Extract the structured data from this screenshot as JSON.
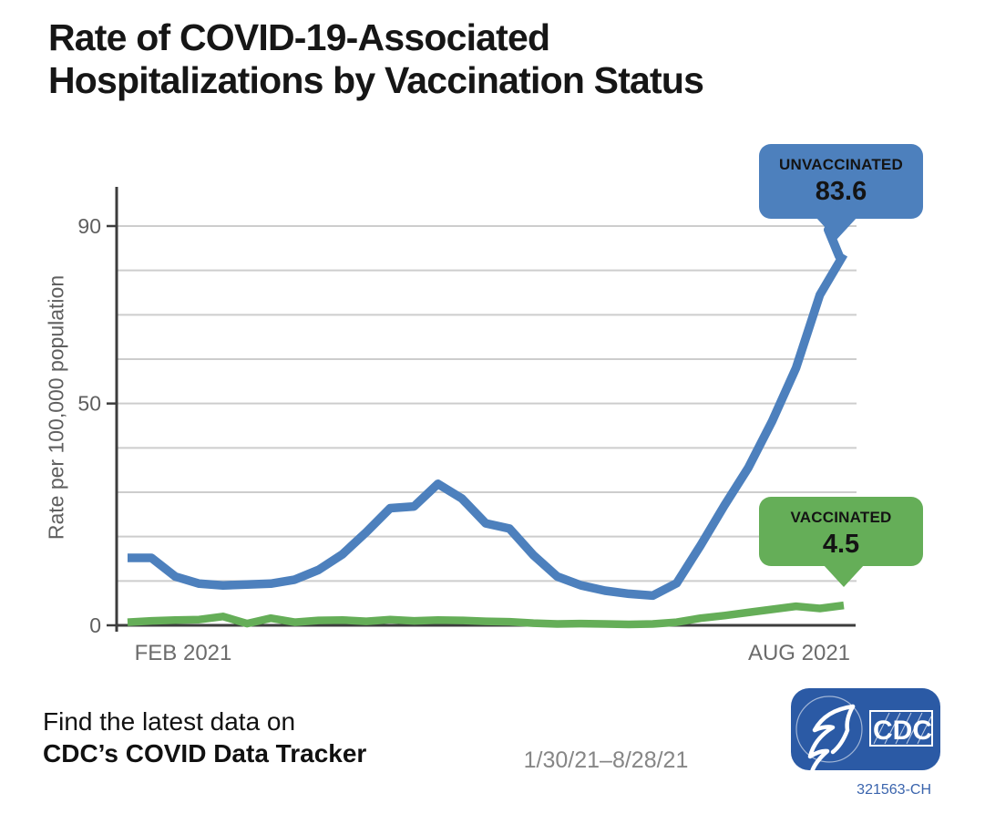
{
  "title": {
    "line1": "Rate of COVID-19-Associated",
    "line2": "Hospitalizations by Vaccination Status"
  },
  "chart_data": {
    "type": "line",
    "title": "Rate of COVID-19-Associated Hospitalizations by Vaccination Status",
    "xlabel": "",
    "ylabel": "Rate per 100,000 population",
    "ylim": [
      0,
      90
    ],
    "grid": true,
    "grid_step": 10,
    "yticks": [
      {
        "value": 0,
        "label": "0"
      },
      {
        "value": 50,
        "label": "50"
      },
      {
        "value": 90,
        "label": "90"
      }
    ],
    "xtick_labels": [
      "FEB 2021",
      "AUG 2021"
    ],
    "x_range": "weekly, 1/30/21 to 8/28/21",
    "legend_position": "callouts at line ends",
    "series": [
      {
        "name": "UNVACCINATED",
        "color": "#4d80bd",
        "final_value": 83.6,
        "values": [
          15.2,
          15.2,
          11.0,
          9.4,
          9.0,
          9.2,
          9.4,
          10.3,
          12.5,
          16.0,
          21.0,
          26.4,
          26.8,
          31.9,
          28.6,
          23.0,
          21.8,
          15.8,
          11.0,
          9.0,
          7.8,
          7.1,
          6.7,
          9.5,
          18.0,
          27.0,
          35.5,
          46.0,
          58.0,
          74.5,
          83.6
        ]
      },
      {
        "name": "VACCINATED",
        "color": "#65ae58",
        "final_value": 4.5,
        "values": [
          0.7,
          1.0,
          1.2,
          1.3,
          2.0,
          0.4,
          1.6,
          0.7,
          1.1,
          1.2,
          0.9,
          1.3,
          1.0,
          1.2,
          1.1,
          0.9,
          0.8,
          0.5,
          0.3,
          0.4,
          0.3,
          0.2,
          0.3,
          0.7,
          1.6,
          2.2,
          2.9,
          3.6,
          4.3,
          3.8,
          4.5
        ]
      }
    ]
  },
  "callouts": {
    "unvaccinated": {
      "label": "UNVACCINATED",
      "value": "83.6",
      "color": "#4d80bd"
    },
    "vaccinated": {
      "label": "VACCINATED",
      "value": "4.5",
      "color": "#65ae58"
    }
  },
  "footer": {
    "line1": "Find the latest data on",
    "line2": "CDC’s COVID Data Tracker",
    "date_range": "1/30/21–8/28/21",
    "chart_id": "321563-CH",
    "logo_text": "CDC",
    "logo_seal_text": "DEPARTMENT OF HEALTH & HUMAN SERVICES USA",
    "logo_color": "#2b5aa5"
  }
}
